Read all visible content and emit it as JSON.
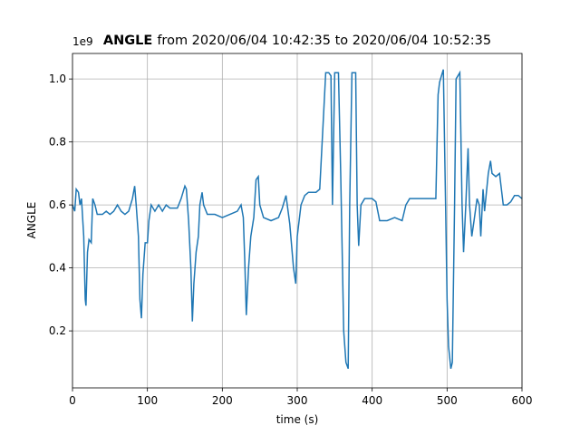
{
  "chart_data": {
    "type": "line",
    "title_bold": "ANGLE",
    "title": "from 2020/06/04 10:42:35 to 2020/06/04 10:52:35",
    "x_label": "time (s)",
    "y_label": "ANGLE",
    "y_offset_label": "1e9",
    "xlim": [
      0,
      600
    ],
    "ylim": [
      0.019,
      1.081
    ],
    "xticks": [
      0,
      100,
      200,
      300,
      400,
      500,
      600
    ],
    "yticks": [
      0.2,
      0.4,
      0.6,
      0.8,
      {
        "value": 1.0,
        "label": "1.0"
      }
    ],
    "grid": true,
    "x": [
      0,
      3,
      5,
      8,
      10,
      12,
      15,
      17,
      18,
      20,
      22,
      25,
      27,
      30,
      33,
      40,
      45,
      50,
      55,
      60,
      65,
      70,
      75,
      80,
      83,
      85,
      88,
      90,
      92,
      94,
      97,
      100,
      102,
      105,
      110,
      115,
      120,
      125,
      130,
      140,
      145,
      150,
      152,
      155,
      158,
      160,
      162,
      165,
      168,
      170,
      173,
      175,
      180,
      190,
      200,
      210,
      220,
      225,
      228,
      230,
      232,
      235,
      238,
      242,
      245,
      248,
      250,
      255,
      265,
      275,
      280,
      285,
      290,
      295,
      298,
      300,
      305,
      310,
      315,
      320,
      325,
      330,
      335,
      338,
      342,
      345,
      347,
      350,
      355,
      358,
      360,
      362,
      365,
      368,
      370,
      373,
      378,
      380,
      382,
      385,
      390,
      400,
      405,
      410,
      420,
      430,
      440,
      445,
      450,
      460,
      470,
      480,
      485,
      488,
      490,
      495,
      498,
      500,
      502,
      505,
      507,
      510,
      512,
      517,
      520,
      522,
      525,
      528,
      530,
      533,
      536,
      540,
      543,
      545,
      548,
      550,
      555,
      558,
      560,
      565,
      570,
      575,
      580,
      585,
      590,
      595,
      600
    ],
    "series": [
      {
        "name": "ANGLE",
        "color": "#1f77b4",
        "values": [
          0.6,
          0.58,
          0.65,
          0.64,
          0.6,
          0.62,
          0.5,
          0.3,
          0.28,
          0.45,
          0.49,
          0.48,
          0.62,
          0.6,
          0.57,
          0.57,
          0.58,
          0.57,
          0.58,
          0.6,
          0.58,
          0.57,
          0.58,
          0.62,
          0.66,
          0.6,
          0.5,
          0.3,
          0.24,
          0.38,
          0.48,
          0.48,
          0.55,
          0.6,
          0.58,
          0.6,
          0.58,
          0.6,
          0.59,
          0.59,
          0.62,
          0.66,
          0.65,
          0.55,
          0.4,
          0.23,
          0.35,
          0.45,
          0.5,
          0.6,
          0.64,
          0.6,
          0.57,
          0.57,
          0.56,
          0.57,
          0.58,
          0.6,
          0.56,
          0.42,
          0.25,
          0.4,
          0.5,
          0.56,
          0.68,
          0.69,
          0.6,
          0.56,
          0.55,
          0.56,
          0.59,
          0.63,
          0.54,
          0.4,
          0.35,
          0.5,
          0.6,
          0.63,
          0.64,
          0.64,
          0.64,
          0.65,
          0.88,
          1.02,
          1.02,
          1.01,
          0.6,
          1.02,
          1.02,
          0.7,
          0.45,
          0.2,
          0.1,
          0.08,
          0.6,
          1.02,
          1.02,
          0.6,
          0.47,
          0.6,
          0.62,
          0.62,
          0.61,
          0.55,
          0.55,
          0.56,
          0.55,
          0.6,
          0.62,
          0.62,
          0.62,
          0.62,
          0.62,
          0.95,
          0.99,
          1.03,
          0.6,
          0.3,
          0.15,
          0.08,
          0.1,
          0.6,
          1.0,
          1.02,
          0.6,
          0.45,
          0.6,
          0.78,
          0.6,
          0.5,
          0.55,
          0.62,
          0.6,
          0.5,
          0.65,
          0.58,
          0.7,
          0.74,
          0.7,
          0.69,
          0.7,
          0.6,
          0.6,
          0.61,
          0.63,
          0.63,
          0.62
        ]
      }
    ]
  }
}
